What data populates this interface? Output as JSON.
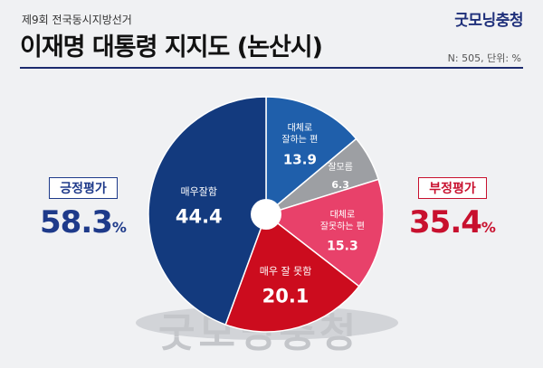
{
  "header": {
    "subtitle": "제9회 전국동시지방선거",
    "title": "이재명 대통령 지지도 (논산시)",
    "brand": "굿모닝충청",
    "note": "N: 505, 단위: %"
  },
  "positive": {
    "label": "긍정평가",
    "value": "58.3",
    "unit": "%"
  },
  "negative": {
    "label": "부정평가",
    "value": "35.4",
    "unit": "%"
  },
  "watermark": "굿모닝충청",
  "chart_data": {
    "type": "pie",
    "slices": [
      {
        "label": "대체로 잘하는 편",
        "lines": [
          "대체로",
          "잘하는 편"
        ],
        "value": 13.9,
        "color": "#1f5fab"
      },
      {
        "label": "잘모름",
        "lines": [
          "잘모름"
        ],
        "value": 6.3,
        "color": "#9d9fa3"
      },
      {
        "label": "대체로 잘못하는 편",
        "lines": [
          "대체로",
          "잘못하는 편"
        ],
        "value": 15.3,
        "color": "#e8416a"
      },
      {
        "label": "매우 잘 못함",
        "lines": [
          "매우 잘 못함"
        ],
        "value": 20.1,
        "color": "#cc0c1e"
      },
      {
        "label": "매우잘함",
        "lines": [
          "매우잘함"
        ],
        "value": 44.4,
        "color": "#133a7e"
      }
    ]
  }
}
